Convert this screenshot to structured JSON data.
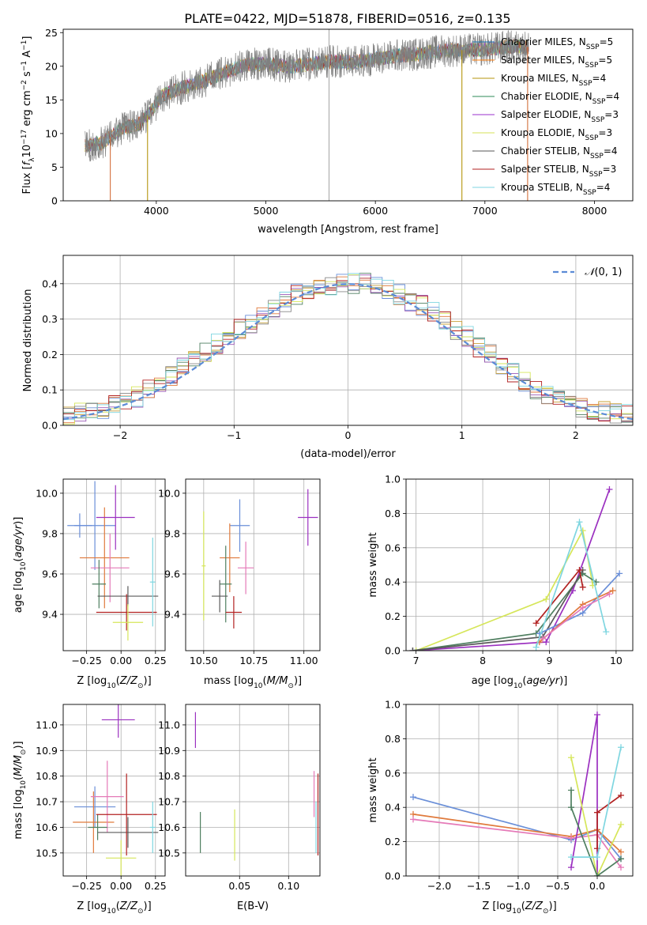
{
  "figure_title": "PLATE=0422, MJD=51878, FIBERID=0516, z=0.135",
  "chart_data": [
    {
      "id": "spectrum",
      "type": "line",
      "xlabel": "wavelength [Angstrom, rest frame]",
      "ylabel": "Flux [f_λ 10^-17 erg cm^-2 s^-1 A^-1]",
      "xlim": [
        3150,
        8350
      ],
      "ylim": [
        0,
        25.5
      ],
      "xticks": [
        4000,
        5000,
        6000,
        7000,
        8000
      ],
      "yticks": [
        0,
        5,
        10,
        15,
        20,
        25
      ],
      "grid": false,
      "legend_position": "right",
      "continuum": [
        [
          3350,
          8.2
        ],
        [
          3500,
          8.6
        ],
        [
          3700,
          10.8
        ],
        [
          3850,
          11.5
        ],
        [
          3950,
          13.2
        ],
        [
          4050,
          15.6
        ],
        [
          4200,
          16.6
        ],
        [
          4400,
          17.6
        ],
        [
          4600,
          18.9
        ],
        [
          4800,
          20.2
        ],
        [
          5000,
          20.4
        ],
        [
          5200,
          19.9
        ],
        [
          5400,
          20.3
        ],
        [
          5600,
          20.7
        ],
        [
          5800,
          20.6
        ],
        [
          6000,
          21.1
        ],
        [
          6200,
          21.6
        ],
        [
          6400,
          21.8
        ],
        [
          6600,
          22.3
        ],
        [
          6800,
          22.4
        ],
        [
          7000,
          22.5
        ],
        [
          7200,
          22.9
        ],
        [
          7400,
          22.9
        ]
      ],
      "series": [
        {
          "name": "Chabrier MILES, N_SSP=5",
          "color": "#1f77b4"
        },
        {
          "name": "Salpeter MILES, N_SSP=5",
          "color": "#ff7f0e"
        },
        {
          "name": "Kroupa MILES, N_SSP=4",
          "color": "#b5960e"
        },
        {
          "name": "Chabrier ELODIE, N_SSP=4",
          "color": "#2e8b57"
        },
        {
          "name": "Salpeter ELODIE, N_SSP=3",
          "color": "#9932cc"
        },
        {
          "name": "Kroupa ELODIE, N_SSP=3",
          "color": "#d4e157"
        },
        {
          "name": "Chabrier STELIB, N_SSP=4",
          "color": "#555555"
        },
        {
          "name": "Salpeter STELIB, N_SSP=3",
          "color": "#b22222"
        },
        {
          "name": "Kroupa STELIB, N_SSP=4",
          "color": "#7fd6e0"
        }
      ],
      "features": [
        {
          "x": 3580,
          "kind": "drop",
          "color": "#d4703c"
        },
        {
          "x": 3920,
          "kind": "drop",
          "color": "#b5960e"
        },
        {
          "x": 5577,
          "kind": "sky",
          "color": "#aaaaaa"
        },
        {
          "x": 6790,
          "kind": "drop",
          "color": "#b5960e"
        },
        {
          "x": 7390,
          "kind": "drop",
          "color": "#d4703c"
        }
      ]
    },
    {
      "id": "residuals",
      "type": "step",
      "xlabel": "(data-model)/error",
      "ylabel": "Normed distribution",
      "xlim": [
        -2.5,
        2.5
      ],
      "ylim": [
        0,
        0.48
      ],
      "xticks": [
        -2,
        -1,
        0,
        1,
        2
      ],
      "yticks": [
        0.0,
        0.1,
        0.2,
        0.3,
        0.4
      ],
      "grid": true,
      "legend": [
        "N(0,1)"
      ],
      "gaussian_color": "#5b8bd6",
      "hist_colors": [
        "#6a8fd8",
        "#e07a3c",
        "#c9a03a",
        "#4f7f60",
        "#9b59b6",
        "#d6e65a",
        "#888888",
        "#b22222",
        "#7fd6e0"
      ],
      "hist_shape": [
        0.03,
        0.035,
        0.04,
        0.045,
        0.055,
        0.065,
        0.08,
        0.1,
        0.12,
        0.14,
        0.16,
        0.19,
        0.21,
        0.23,
        0.25,
        0.27,
        0.29,
        0.31,
        0.33,
        0.35,
        0.37,
        0.38,
        0.39,
        0.39,
        0.4,
        0.4,
        0.4,
        0.39,
        0.38,
        0.37,
        0.35,
        0.34,
        0.32,
        0.3,
        0.27,
        0.25,
        0.22,
        0.2,
        0.17,
        0.15,
        0.12,
        0.1,
        0.085,
        0.07,
        0.06,
        0.05,
        0.045,
        0.04,
        0.035,
        0.03
      ]
    },
    {
      "id": "age_vs_Z",
      "type": "errorbar",
      "xlabel": "Z [log10(Z/Z⊙)]",
      "ylabel": "age  [log10(age/yr)]",
      "xlim": [
        -0.42,
        0.32
      ],
      "ylim": [
        9.22,
        10.07
      ],
      "xticks": [
        -0.25,
        0.0,
        0.25
      ],
      "xtick_labels": [
        "−0.25",
        "0.00",
        "0.25"
      ],
      "yticks": [
        9.4,
        9.6,
        9.8,
        10.0
      ],
      "grid": true,
      "points": [
        {
          "x": -0.19,
          "y": 9.84,
          "xe": 0.15,
          "ye": 0.22,
          "color": "#6a8fd8"
        },
        {
          "x": -0.3,
          "y": 9.84,
          "xe": 0.09,
          "ye": 0.06,
          "color": "#6a8fd8"
        },
        {
          "x": -0.12,
          "y": 9.68,
          "xe": 0.18,
          "ye": 0.25,
          "color": "#e07a3c"
        },
        {
          "x": -0.08,
          "y": 9.63,
          "xe": 0.14,
          "ye": 0.17,
          "color": "#e57ab8"
        },
        {
          "x": -0.04,
          "y": 9.88,
          "xe": 0.14,
          "ye": 0.16,
          "color": "#9b30c0"
        },
        {
          "x": -0.16,
          "y": 9.55,
          "xe": 0.05,
          "ye": 0.12,
          "color": "#4f7f60"
        },
        {
          "x": 0.05,
          "y": 9.49,
          "xe": 0.22,
          "ye": 0.05,
          "color": "#5a5a5a"
        },
        {
          "x": 0.04,
          "y": 9.41,
          "xe": 0.22,
          "ye": 0.09,
          "color": "#b22222"
        },
        {
          "x": 0.23,
          "y": 9.56,
          "xe": 0.02,
          "ye": 0.22,
          "color": "#7fd6e0"
        },
        {
          "x": 0.05,
          "y": 9.36,
          "xe": 0.11,
          "ye": 0.09,
          "color": "#d6e65a"
        }
      ]
    },
    {
      "id": "age_vs_mass",
      "type": "errorbar",
      "xlabel": "mass [log10(M/M⊙)]",
      "ylabel": "",
      "xlim": [
        10.41,
        11.08
      ],
      "ylim": [
        9.22,
        10.07
      ],
      "xticks": [
        10.5,
        10.75,
        11.0
      ],
      "xtick_labels": [
        "10.50",
        "10.75",
        "11.00"
      ],
      "yticks": [
        9.4,
        9.6,
        9.8,
        10.0
      ],
      "grid": true,
      "points": [
        {
          "x": 10.68,
          "y": 9.84,
          "xe": 0.05,
          "ye": 0.13,
          "color": "#6a8fd8"
        },
        {
          "x": 10.63,
          "y": 9.68,
          "xe": 0.05,
          "ye": 0.17,
          "color": "#e07a3c"
        },
        {
          "x": 10.71,
          "y": 9.63,
          "xe": 0.04,
          "ye": 0.13,
          "color": "#e57ab8"
        },
        {
          "x": 11.02,
          "y": 9.88,
          "xe": 0.05,
          "ye": 0.14,
          "color": "#9b30c0"
        },
        {
          "x": 10.61,
          "y": 9.55,
          "xe": 0.03,
          "ye": 0.19,
          "color": "#4f7f60"
        },
        {
          "x": 10.58,
          "y": 9.49,
          "xe": 0.04,
          "ye": 0.08,
          "color": "#5a5a5a"
        },
        {
          "x": 10.65,
          "y": 9.41,
          "xe": 0.04,
          "ye": 0.08,
          "color": "#b22222"
        },
        {
          "x": 10.5,
          "y": 9.64,
          "xe": 0.01,
          "ye": 0.27,
          "color": "#d6e65a"
        }
      ]
    },
    {
      "id": "weight_vs_age",
      "type": "line",
      "xlabel": "age  [log10(age/yr)]",
      "ylabel": "mass weight",
      "xlim": [
        6.85,
        10.25
      ],
      "ylim": [
        0,
        1.0
      ],
      "xticks": [
        7,
        8,
        9,
        10
      ],
      "yticks": [
        0.0,
        0.2,
        0.4,
        0.6,
        0.8,
        1.0
      ],
      "grid": true,
      "series": [
        {
          "color": "#d6e65a",
          "points": [
            [
              7.0,
              0.0
            ],
            [
              8.95,
              0.3
            ],
            [
              9.5,
              0.7
            ],
            [
              9.65,
              0.38
            ]
          ]
        },
        {
          "color": "#9b30c0",
          "points": [
            [
              6.95,
              0.0
            ],
            [
              8.95,
              0.05
            ],
            [
              9.35,
              0.35
            ],
            [
              9.9,
              0.94
            ]
          ]
        },
        {
          "color": "#4f7f60",
          "points": [
            [
              6.95,
              0.0
            ],
            [
              8.8,
              0.1
            ],
            [
              9.5,
              0.45
            ],
            [
              9.7,
              0.4
            ]
          ]
        },
        {
          "color": "#5a5a5a",
          "points": [
            [
              6.95,
              0.0
            ],
            [
              8.9,
              0.08
            ],
            [
              9.5,
              0.47
            ]
          ]
        },
        {
          "color": "#b22222",
          "points": [
            [
              8.8,
              0.16
            ],
            [
              9.45,
              0.47
            ],
            [
              9.5,
              0.37
            ]
          ]
        },
        {
          "color": "#6a8fd8",
          "points": [
            [
              8.85,
              0.1
            ],
            [
              9.5,
              0.22
            ],
            [
              10.05,
              0.45
            ]
          ]
        },
        {
          "color": "#e07a3c",
          "points": [
            [
              8.85,
              0.05
            ],
            [
              9.5,
              0.27
            ],
            [
              9.95,
              0.35
            ]
          ]
        },
        {
          "color": "#e57ab8",
          "points": [
            [
              8.9,
              0.07
            ],
            [
              9.5,
              0.25
            ],
            [
              9.9,
              0.33
            ]
          ]
        },
        {
          "color": "#7fd6e0",
          "points": [
            [
              8.8,
              0.02
            ],
            [
              9.45,
              0.75
            ],
            [
              9.85,
              0.11
            ]
          ]
        }
      ]
    },
    {
      "id": "mass_vs_Z",
      "type": "errorbar",
      "xlabel": "Z [log10(Z/Z⊙)]",
      "ylabel": "mass [log10(M/M⊙)]",
      "xlim": [
        -0.42,
        0.32
      ],
      "ylim": [
        10.41,
        11.08
      ],
      "xticks": [
        -0.25,
        0.0,
        0.25
      ],
      "xtick_labels": [
        "−0.25",
        "0.00",
        "0.25"
      ],
      "yticks": [
        10.5,
        10.6,
        10.7,
        10.8,
        10.9,
        11.0
      ],
      "grid": true,
      "points": [
        {
          "x": -0.19,
          "y": 10.68,
          "xe": 0.15,
          "ye": 0.08,
          "color": "#6a8fd8"
        },
        {
          "x": -0.2,
          "y": 10.62,
          "xe": 0.15,
          "ye": 0.12,
          "color": "#e07a3c"
        },
        {
          "x": -0.1,
          "y": 10.72,
          "xe": 0.12,
          "ye": 0.14,
          "color": "#e57ab8"
        },
        {
          "x": -0.02,
          "y": 11.02,
          "xe": 0.12,
          "ye": 0.07,
          "color": "#9b30c0"
        },
        {
          "x": -0.17,
          "y": 10.6,
          "xe": 0.07,
          "ye": 0.05,
          "color": "#4f7f60"
        },
        {
          "x": 0.05,
          "y": 10.58,
          "xe": 0.22,
          "ye": 0.06,
          "color": "#5a5a5a"
        },
        {
          "x": 0.04,
          "y": 10.65,
          "xe": 0.22,
          "ye": 0.16,
          "color": "#b22222"
        },
        {
          "x": 0.23,
          "y": 10.6,
          "xe": 0.02,
          "ye": 0.1,
          "color": "#7fd6e0"
        },
        {
          "x": 0.0,
          "y": 10.48,
          "xe": 0.11,
          "ye": 0.07,
          "color": "#d6e65a"
        }
      ]
    },
    {
      "id": "mass_vs_EBV",
      "type": "errorbar",
      "xlabel": "E(B-V)",
      "ylabel": "",
      "xlim": [
        -0.005,
        0.132
      ],
      "ylim": [
        10.41,
        11.08
      ],
      "xticks": [
        0.05,
        0.1
      ],
      "xtick_labels": [
        "0.05",
        "0.10"
      ],
      "yticks": [
        10.5,
        10.6,
        10.7,
        10.8,
        10.9,
        11.0
      ],
      "grid": true,
      "points": [
        {
          "x": 0.005,
          "y": 10.98,
          "xe": 0.0,
          "ye": 0.07,
          "color": "#9b30c0"
        },
        {
          "x": 0.01,
          "y": 10.58,
          "xe": 0.0,
          "ye": 0.08,
          "color": "#4f7f60"
        },
        {
          "x": 0.045,
          "y": 10.57,
          "xe": 0.0,
          "ye": 0.1,
          "color": "#d6e65a"
        },
        {
          "x": 0.126,
          "y": 10.73,
          "xe": 0.0,
          "ye": 0.09,
          "color": "#e57ab8"
        },
        {
          "x": 0.13,
          "y": 10.65,
          "xe": 0.0,
          "ye": 0.16,
          "color": "#b22222"
        },
        {
          "x": 0.128,
          "y": 10.6,
          "xe": 0.0,
          "ye": 0.1,
          "color": "#7fd6e0"
        }
      ]
    },
    {
      "id": "weight_vs_Z",
      "type": "line",
      "xlabel": "Z [log10(Z/Z⊙)]",
      "ylabel": "mass weight",
      "xlim": [
        -2.42,
        0.45
      ],
      "ylim": [
        0,
        1.0
      ],
      "xticks": [
        -2.0,
        -1.5,
        -1.0,
        -0.5,
        0.0
      ],
      "xtick_labels": [
        "−2.0",
        "−1.5",
        "−1.0",
        "−0.5",
        "0.0"
      ],
      "yticks": [
        0.0,
        0.2,
        0.4,
        0.6,
        0.8,
        1.0
      ],
      "grid": true,
      "series": [
        {
          "color": "#6a8fd8",
          "points": [
            [
              -2.33,
              0.46
            ],
            [
              -0.33,
              0.21
            ],
            [
              0.0,
              0.27
            ],
            [
              0.3,
              0.1
            ]
          ]
        },
        {
          "color": "#e07a3c",
          "points": [
            [
              -2.33,
              0.36
            ],
            [
              -0.33,
              0.23
            ],
            [
              0.0,
              0.27
            ],
            [
              0.3,
              0.14
            ]
          ]
        },
        {
          "color": "#e57ab8",
          "points": [
            [
              -2.33,
              0.33
            ],
            [
              -0.33,
              0.22
            ],
            [
              0.0,
              0.24
            ],
            [
              0.3,
              0.05
            ]
          ]
        },
        {
          "color": "#9b30c0",
          "points": [
            [
              -0.33,
              0.05
            ],
            [
              0.0,
              0.94
            ],
            [
              0.0,
              0.0
            ]
          ]
        },
        {
          "color": "#d6e65a",
          "points": [
            [
              -0.33,
              0.69
            ],
            [
              0.0,
              0.0
            ],
            [
              0.3,
              0.3
            ]
          ]
        },
        {
          "color": "#4f7f60",
          "points": [
            [
              -0.33,
              0.5
            ],
            [
              -0.33,
              0.4
            ],
            [
              0.0,
              0.0
            ],
            [
              0.3,
              0.1
            ]
          ]
        },
        {
          "color": "#b22222",
          "points": [
            [
              0.0,
              0.16
            ],
            [
              0.0,
              0.37
            ],
            [
              0.3,
              0.47
            ]
          ]
        },
        {
          "color": "#7fd6e0",
          "points": [
            [
              -0.33,
              0.11
            ],
            [
              0.0,
              0.11
            ],
            [
              0.3,
              0.75
            ]
          ]
        }
      ]
    }
  ]
}
